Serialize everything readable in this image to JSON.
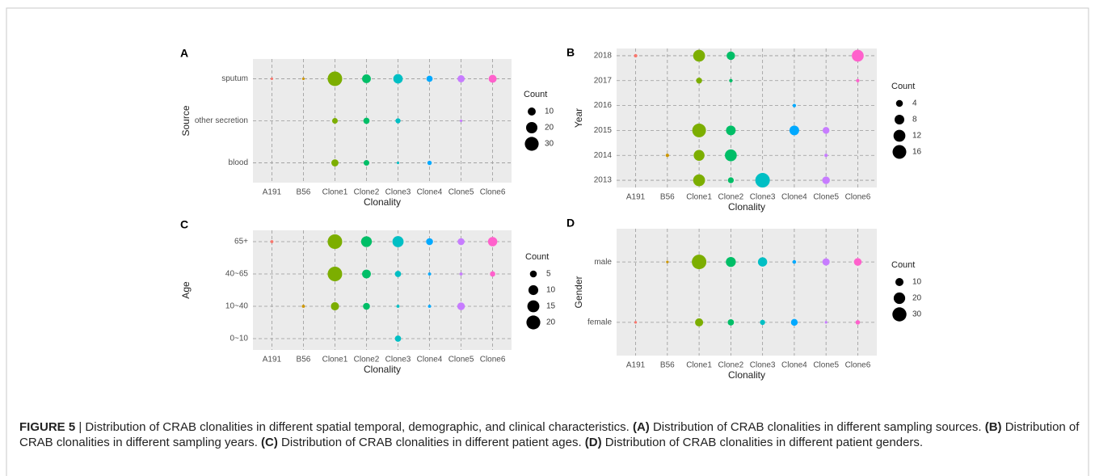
{
  "chart_data": [
    {
      "type": "bubble",
      "panel": "A",
      "x_label": "Clonality",
      "y_label": "Source",
      "categories": [
        "A191",
        "B56",
        "Clone1",
        "Clone2",
        "Clone3",
        "Clone4",
        "Clone5",
        "Clone6"
      ],
      "colors": [
        "#F8766D",
        "#CD9600",
        "#7CAE00",
        "#00BE67",
        "#00BFC4",
        "#00A9FF",
        "#C77CFF",
        "#FF61CC"
      ],
      "rows": [
        "blood",
        "other secretion",
        "sputum"
      ],
      "counts": [
        [
          null,
          null,
          8,
          5,
          1,
          3,
          null,
          null
        ],
        [
          null,
          null,
          5,
          6,
          4,
          null,
          1,
          null
        ],
        [
          1,
          1,
          33,
          12,
          14,
          6,
          8,
          10
        ]
      ],
      "size_legend": {
        "title": "Count",
        "values": [
          10,
          20,
          30
        ]
      }
    },
    {
      "type": "bubble",
      "panel": "B",
      "x_label": "Clonality",
      "y_label": "Year",
      "categories": [
        "A191",
        "B56",
        "Clone1",
        "Clone2",
        "Clone3",
        "Clone4",
        "Clone5",
        "Clone6"
      ],
      "colors": [
        "#F8766D",
        "#CD9600",
        "#7CAE00",
        "#00BE67",
        "#00BFC4",
        "#00A9FF",
        "#C77CFF",
        "#FF61CC"
      ],
      "rows": [
        "2013",
        "2014",
        "2015",
        "2016",
        "2017",
        "2018"
      ],
      "counts": [
        [
          null,
          null,
          12,
          3,
          18,
          null,
          5,
          null
        ],
        [
          null,
          1,
          10,
          12,
          null,
          null,
          1,
          null
        ],
        [
          null,
          null,
          16,
          8,
          null,
          8,
          4,
          null
        ],
        [
          null,
          null,
          null,
          null,
          null,
          1,
          null,
          null
        ],
        [
          null,
          null,
          3,
          1,
          null,
          null,
          null,
          1
        ],
        [
          1,
          null,
          12,
          6,
          null,
          null,
          null,
          12
        ]
      ],
      "size_legend": {
        "title": "Count",
        "values": [
          4,
          8,
          12,
          16
        ]
      }
    },
    {
      "type": "bubble",
      "panel": "C",
      "x_label": "Clonality",
      "y_label": "Age",
      "categories": [
        "A191",
        "B56",
        "Clone1",
        "Clone2",
        "Clone3",
        "Clone4",
        "Clone5",
        "Clone6"
      ],
      "colors": [
        "#F8766D",
        "#CD9600",
        "#7CAE00",
        "#00BE67",
        "#00BFC4",
        "#00A9FF",
        "#C77CFF",
        "#FF61CC"
      ],
      "rows": [
        "0~10",
        "10~40",
        "40~65",
        "65+"
      ],
      "counts": [
        [
          null,
          null,
          null,
          null,
          4,
          null,
          null,
          null
        ],
        [
          null,
          1,
          7,
          5,
          1,
          1,
          6,
          null
        ],
        [
          null,
          null,
          22,
          8,
          4,
          1,
          1,
          3
        ],
        [
          1,
          null,
          22,
          12,
          13,
          5,
          5,
          9
        ]
      ],
      "size_legend": {
        "title": "Count",
        "values": [
          5,
          10,
          15,
          20
        ]
      }
    },
    {
      "type": "bubble",
      "panel": "D",
      "x_label": "Clonality",
      "y_label": "Gender",
      "categories": [
        "A191",
        "B56",
        "Clone1",
        "Clone2",
        "Clone3",
        "Clone4",
        "Clone5",
        "Clone6"
      ],
      "colors": [
        "#F8766D",
        "#CD9600",
        "#7CAE00",
        "#00BE67",
        "#00BFC4",
        "#00A9FF",
        "#C77CFF",
        "#FF61CC"
      ],
      "rows": [
        "female",
        "male"
      ],
      "counts": [
        [
          1,
          null,
          10,
          6,
          4,
          7,
          1,
          3
        ],
        [
          null,
          1,
          32,
          15,
          13,
          2,
          8,
          9
        ]
      ],
      "size_legend": {
        "title": "Count",
        "values": [
          10,
          20,
          30
        ]
      }
    }
  ],
  "caption": {
    "label": "FIGURE 5",
    "intro": "| Distribution of CRAB clonalities in different spatial temporal, demographic, and clinical characteristics.",
    "parts": [
      {
        "tag": "(A)",
        "text": "Distribution of CRAB clonalities in different sampling sources."
      },
      {
        "tag": "(B)",
        "text": "Distribution of CRAB clonalities in different sampling years."
      },
      {
        "tag": "(C)",
        "text": "Distribution of CRAB clonalities in different patient ages."
      },
      {
        "tag": "(D)",
        "text": "Distribution of CRAB clonalities in different patient genders."
      }
    ]
  }
}
